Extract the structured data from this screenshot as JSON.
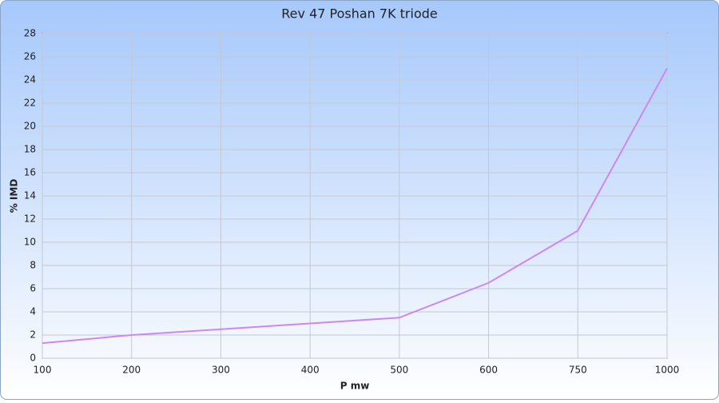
{
  "chart_data": {
    "type": "line",
    "title": "Rev 47 Poshan 7K triode",
    "x_label": "P mw",
    "y_label": "% IMD",
    "categories": [
      100,
      200,
      300,
      400,
      500,
      600,
      750,
      1000
    ],
    "values": [
      1.3,
      2.0,
      2.5,
      3.0,
      3.5,
      6.5,
      11.0,
      25.0
    ],
    "color": "#cc88f0",
    "ylim": [
      0,
      28
    ],
    "yticks": [
      0,
      2,
      4,
      6,
      8,
      10,
      12,
      14,
      16,
      18,
      20,
      22,
      24,
      26,
      28
    ],
    "grid": true
  }
}
